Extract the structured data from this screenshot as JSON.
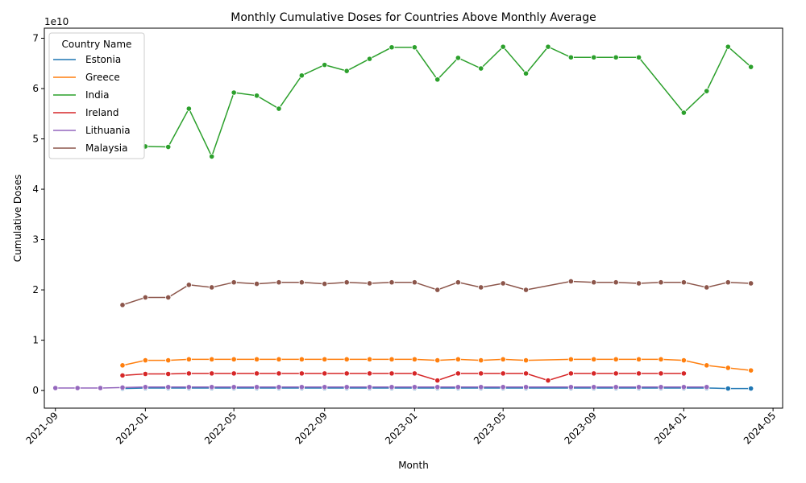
{
  "chart_data": {
    "type": "line",
    "title": "Monthly Cumulative Doses for Countries Above Monthly Average",
    "xlabel": "Month",
    "ylabel": "Cumulative Doses",
    "y_offset_label": "1e10",
    "y_scale": 10000000000,
    "ylim": [
      -0.35,
      7.2
    ],
    "xlim": [
      "2021-08-17",
      "2024-05-14"
    ],
    "y_ticks": [
      0,
      1,
      2,
      3,
      4,
      5,
      6,
      7
    ],
    "y_tick_labels": [
      "0",
      "1",
      "2",
      "3",
      "4",
      "5",
      "6",
      "7"
    ],
    "x_ticks": [
      "2021-09-01",
      "2022-01-01",
      "2022-05-01",
      "2022-09-01",
      "2023-01-01",
      "2023-05-01",
      "2023-09-01",
      "2024-01-01",
      "2024-05-01"
    ],
    "x_tick_labels": [
      "2021-09",
      "2022-01",
      "2022-05",
      "2022-09",
      "2023-01",
      "2023-05",
      "2023-09",
      "2024-01",
      "2024-05"
    ],
    "grid": false,
    "legend_title": "Country Name",
    "legend_position": "top-left",
    "series": [
      {
        "name": "Estonia",
        "color": "#1f77b4",
        "x": [
          "2021-12-01",
          "2022-01-01",
          "2022-02-01",
          "2022-03-01",
          "2022-04-01",
          "2022-05-01",
          "2022-06-01",
          "2022-07-01",
          "2022-08-01",
          "2022-09-01",
          "2022-10-01",
          "2022-11-01",
          "2022-12-01",
          "2023-01-01",
          "2023-02-01",
          "2023-03-01",
          "2023-04-01",
          "2023-05-01",
          "2023-06-01",
          "2023-08-01",
          "2023-09-01",
          "2023-10-01",
          "2023-11-01",
          "2023-12-01",
          "2024-01-01",
          "2024-02-01",
          "2024-03-01",
          "2024-04-01"
        ],
        "values": [
          0.04,
          0.05,
          0.05,
          0.05,
          0.05,
          0.05,
          0.05,
          0.05,
          0.05,
          0.05,
          0.05,
          0.05,
          0.05,
          0.05,
          0.05,
          0.05,
          0.05,
          0.05,
          0.05,
          0.05,
          0.05,
          0.05,
          0.05,
          0.05,
          0.05,
          0.05,
          0.04,
          0.04
        ]
      },
      {
        "name": "Greece",
        "color": "#ff7f0e",
        "x": [
          "2021-12-01",
          "2022-01-01",
          "2022-02-01",
          "2022-03-01",
          "2022-04-01",
          "2022-05-01",
          "2022-06-01",
          "2022-07-01",
          "2022-08-01",
          "2022-09-01",
          "2022-10-01",
          "2022-11-01",
          "2022-12-01",
          "2023-01-01",
          "2023-02-01",
          "2023-03-01",
          "2023-04-01",
          "2023-05-01",
          "2023-06-01",
          "2023-08-01",
          "2023-09-01",
          "2023-10-01",
          "2023-11-01",
          "2023-12-01",
          "2024-01-01",
          "2024-02-01",
          "2024-03-01",
          "2024-04-01"
        ],
        "values": [
          0.5,
          0.6,
          0.6,
          0.62,
          0.62,
          0.62,
          0.62,
          0.62,
          0.62,
          0.62,
          0.62,
          0.62,
          0.62,
          0.62,
          0.6,
          0.62,
          0.6,
          0.62,
          0.6,
          0.62,
          0.62,
          0.62,
          0.62,
          0.62,
          0.6,
          0.5,
          0.45,
          0.4
        ]
      },
      {
        "name": "India",
        "color": "#2ca02c",
        "x": [
          "2022-01-01",
          "2022-02-01",
          "2022-03-01",
          "2022-04-01",
          "2022-05-01",
          "2022-06-01",
          "2022-07-01",
          "2022-08-01",
          "2022-09-01",
          "2022-10-01",
          "2022-11-01",
          "2022-12-01",
          "2023-01-01",
          "2023-02-01",
          "2023-03-01",
          "2023-04-01",
          "2023-05-01",
          "2023-06-01",
          "2023-07-01",
          "2023-08-01",
          "2023-09-01",
          "2023-10-01",
          "2023-11-01",
          "2024-01-01",
          "2024-02-01",
          "2024-03-01",
          "2024-04-01"
        ],
        "values": [
          4.85,
          4.84,
          5.6,
          4.65,
          5.92,
          5.86,
          5.6,
          6.26,
          6.47,
          6.35,
          6.59,
          6.82,
          6.82,
          6.18,
          6.61,
          6.4,
          6.83,
          6.3,
          6.83,
          6.62,
          6.62,
          6.62,
          6.62,
          5.52,
          5.95,
          6.83,
          6.43
        ]
      },
      {
        "name": "Ireland",
        "color": "#d62728",
        "x": [
          "2021-12-01",
          "2022-01-01",
          "2022-02-01",
          "2022-03-01",
          "2022-04-01",
          "2022-05-01",
          "2022-06-01",
          "2022-07-01",
          "2022-08-01",
          "2022-09-01",
          "2022-10-01",
          "2022-11-01",
          "2022-12-01",
          "2023-01-01",
          "2023-02-01",
          "2023-03-01",
          "2023-04-01",
          "2023-05-01",
          "2023-06-01",
          "2023-07-01",
          "2023-08-01",
          "2023-09-01",
          "2023-10-01",
          "2023-11-01",
          "2023-12-01",
          "2024-01-01"
        ],
        "values": [
          0.3,
          0.33,
          0.33,
          0.34,
          0.34,
          0.34,
          0.34,
          0.34,
          0.34,
          0.34,
          0.34,
          0.34,
          0.34,
          0.34,
          0.2,
          0.34,
          0.34,
          0.34,
          0.34,
          0.2,
          0.34,
          0.34,
          0.34,
          0.34,
          0.34,
          0.34
        ]
      },
      {
        "name": "Lithuania",
        "color": "#9467bd",
        "x": [
          "2021-09-01",
          "2021-10-01",
          "2021-11-01",
          "2021-12-01",
          "2022-01-01",
          "2022-02-01",
          "2022-03-01",
          "2022-04-01",
          "2022-05-01",
          "2022-06-01",
          "2022-07-01",
          "2022-08-01",
          "2022-09-01",
          "2022-10-01",
          "2022-11-01",
          "2022-12-01",
          "2023-01-01",
          "2023-02-01",
          "2023-03-01",
          "2023-04-01",
          "2023-05-01",
          "2023-06-01",
          "2023-08-01",
          "2023-09-01",
          "2023-10-01",
          "2023-11-01",
          "2023-12-01",
          "2024-01-01",
          "2024-02-01"
        ],
        "values": [
          0.05,
          0.05,
          0.05,
          0.06,
          0.07,
          0.07,
          0.07,
          0.07,
          0.07,
          0.07,
          0.07,
          0.07,
          0.07,
          0.07,
          0.07,
          0.07,
          0.07,
          0.07,
          0.07,
          0.07,
          0.07,
          0.07,
          0.07,
          0.07,
          0.07,
          0.07,
          0.07,
          0.07,
          0.07
        ]
      },
      {
        "name": "Malaysia",
        "color": "#8c564b",
        "x": [
          "2021-12-01",
          "2022-01-01",
          "2022-02-01",
          "2022-03-01",
          "2022-04-01",
          "2022-05-01",
          "2022-06-01",
          "2022-07-01",
          "2022-08-01",
          "2022-09-01",
          "2022-10-01",
          "2022-11-01",
          "2022-12-01",
          "2023-01-01",
          "2023-02-01",
          "2023-03-01",
          "2023-04-01",
          "2023-05-01",
          "2023-06-01",
          "2023-08-01",
          "2023-09-01",
          "2023-10-01",
          "2023-11-01",
          "2023-12-01",
          "2024-01-01",
          "2024-02-01",
          "2024-03-01",
          "2024-04-01"
        ],
        "values": [
          1.7,
          1.85,
          1.85,
          2.1,
          2.05,
          2.15,
          2.12,
          2.15,
          2.15,
          2.12,
          2.15,
          2.13,
          2.15,
          2.15,
          2.0,
          2.15,
          2.05,
          2.13,
          2.0,
          2.17,
          2.15,
          2.15,
          2.13,
          2.15,
          2.15,
          2.05,
          2.15,
          2.13
        ]
      }
    ]
  }
}
